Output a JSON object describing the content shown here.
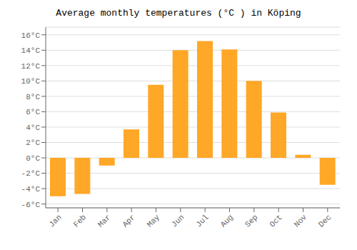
{
  "chart_data": {
    "type": "bar",
    "title": "Average monthly temperatures (°C ) in Köping",
    "categories": [
      "Jan",
      "Feb",
      "Mar",
      "Apr",
      "May",
      "Jun",
      "Jul",
      "Aug",
      "Sep",
      "Oct",
      "Nov",
      "Dec"
    ],
    "values": [
      -5.0,
      -4.7,
      -1.0,
      3.7,
      9.5,
      14.0,
      15.2,
      14.1,
      10.0,
      5.9,
      0.4,
      -3.5
    ],
    "color": "#FFA726",
    "ylim": [
      -6.5,
      17.0
    ],
    "yticks": [
      {
        "value": -6,
        "label": "-6°C"
      },
      {
        "value": -4,
        "label": "-4°C"
      },
      {
        "value": -2,
        "label": "-2°C"
      },
      {
        "value": 0,
        "label": "0°C"
      },
      {
        "value": 2,
        "label": "2°C"
      },
      {
        "value": 4,
        "label": "4°C"
      },
      {
        "value": 6,
        "label": "6°C"
      },
      {
        "value": 8,
        "label": "8°C"
      },
      {
        "value": 10,
        "label": "10°C"
      },
      {
        "value": 12,
        "label": "12°C"
      },
      {
        "value": 14,
        "label": "14°C"
      },
      {
        "value": 16,
        "label": "16°C"
      }
    ],
    "grid": true
  }
}
